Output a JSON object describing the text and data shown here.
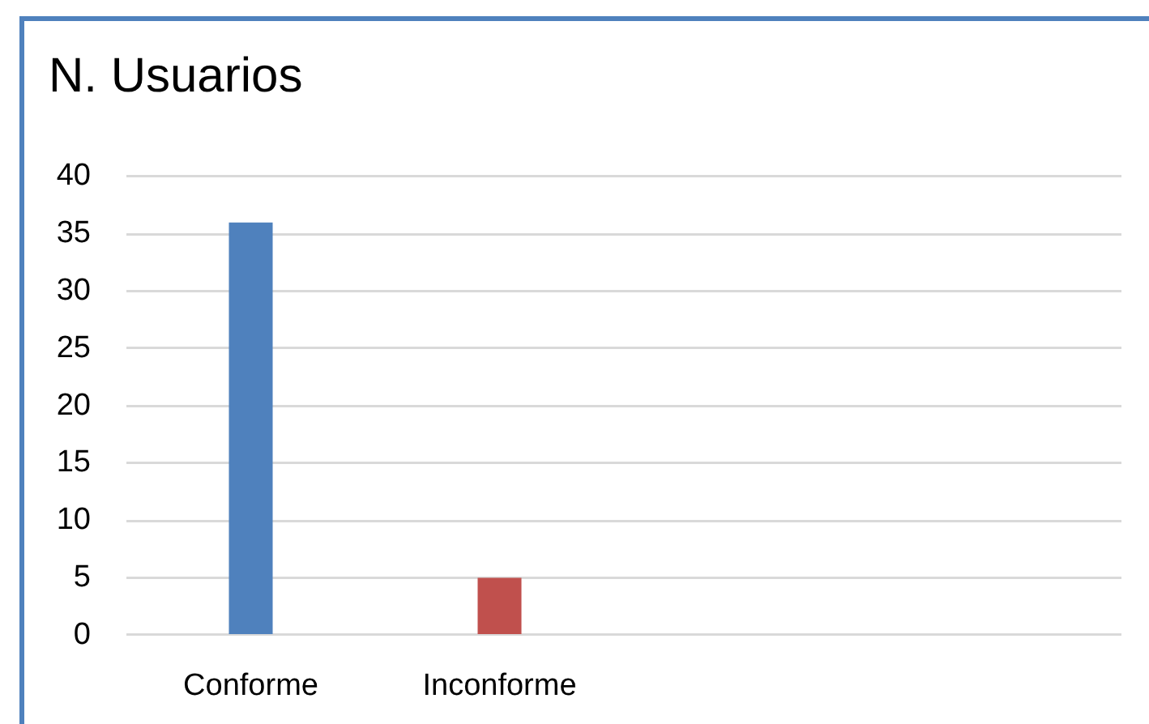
{
  "chart_data": {
    "type": "bar",
    "title": "N. Usuarios",
    "categories": [
      "Conforme",
      "Inconforme",
      null,
      null
    ],
    "values": [
      36,
      5,
      null,
      null
    ],
    "colors": [
      "#4f81bd",
      "#c0504d",
      null,
      null
    ],
    "ylim": [
      0,
      40
    ],
    "yticks": [
      0,
      5,
      10,
      15,
      20,
      25,
      30,
      35,
      40
    ],
    "grid": "y"
  }
}
